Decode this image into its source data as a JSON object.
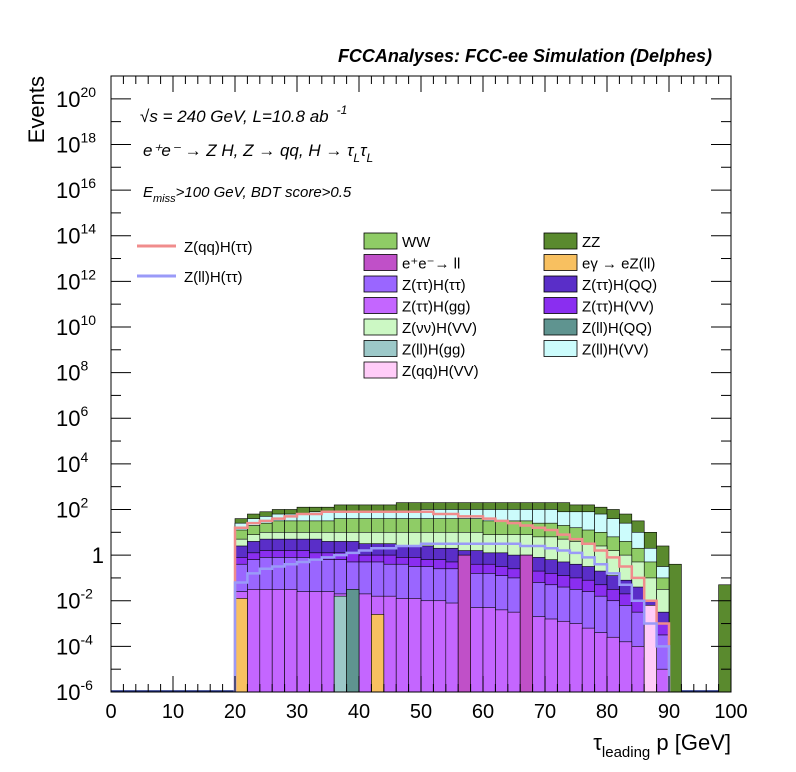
{
  "header": {
    "title": "FCCAnalyses: FCC-ee Simulation (Delphes)"
  },
  "annotations": {
    "line1_sqrt": "√s",
    "line1_rest": " = 240 GeV, L=10.8 ab",
    "line1_sup": "-1",
    "line2": "e⁺e⁻ → Z H, Z → qq, H → τ",
    "line2_sub1": "L",
    "line2_tau": "τ",
    "line2_sub2": "L",
    "line3_e": "E",
    "line3_sub": "miss",
    "line3_rest": ">100 GeV, BDT score>0.5"
  },
  "colors": {
    "WW": "#8fcc66",
    "ZZ": "#5a8a2e",
    "ee_ll": "#c050c8",
    "egamma_eZll": "#f8c060",
    "Ztautau_Htautau": "#9a66ff",
    "Ztautau_HQQ": "#5a2ec8",
    "Ztautau_Hgg": "#c466ff",
    "Ztautau_HVV": "#8a2ef0",
    "Znunu_HVV": "#ccf8c4",
    "Zll_HQQ": "#5f9490",
    "Zll_Hgg": "#9cc8c8",
    "Zll_HVV": "#ccfcfc",
    "Zqq_HVV": "#ffccf8",
    "sig_Zqq_Htautau": "#f08c8c",
    "sig_Zll_Htautau": "#9a9af8"
  },
  "chart_data": {
    "type": "stacked-histogram",
    "title": "FCCAnalyses: FCC-ee Simulation (Delphes)",
    "xlabel": "τ_leading p [GeV]",
    "ylabel": "Events",
    "xlim": [
      0,
      100
    ],
    "ylim": [
      1e-06,
      1e+21
    ],
    "log_y": true,
    "x_ticks": [
      "0",
      "10",
      "20",
      "30",
      "40",
      "50",
      "60",
      "70",
      "80",
      "90",
      "100"
    ],
    "y_ticks": [
      {
        "base": "10",
        "exp": "20"
      },
      {
        "base": "10",
        "exp": "18"
      },
      {
        "base": "10",
        "exp": "16"
      },
      {
        "base": "10",
        "exp": "14"
      },
      {
        "base": "10",
        "exp": "12"
      },
      {
        "base": "10",
        "exp": "10"
      },
      {
        "base": "10",
        "exp": "8"
      },
      {
        "base": "10",
        "exp": "6"
      },
      {
        "base": "10",
        "exp": "4"
      },
      {
        "base": "10",
        "exp": "2"
      },
      {
        "base": "1",
        "exp": ""
      },
      {
        "base": "10",
        "exp": "-2"
      },
      {
        "base": "10",
        "exp": "-4"
      },
      {
        "base": "10",
        "exp": "-6"
      }
    ],
    "legend_signal": [
      "Z(qq)H(ττ)",
      "Z(ll)H(ττ)"
    ],
    "legend_bkg": [
      [
        "WW",
        "ZZ"
      ],
      [
        "e⁺e⁻→ ll",
        "eγ → eZ(ll)"
      ],
      [
        "Z(ττ)H(ττ)",
        "Z(ττ)H(QQ)"
      ],
      [
        "Z(ττ)H(gg)",
        "Z(ττ)H(VV)"
      ],
      [
        "Z(νν)H(VV)",
        "Z(ll)H(QQ)"
      ],
      [
        "Z(ll)H(gg)",
        "Z(ll)H(VV)"
      ],
      [
        "Z(qq)H(VV)",
        ""
      ]
    ],
    "bin_width": 2,
    "stack_layers_log10_top": [
      {
        "name": "Z(ττ)H(gg)",
        "color_key": "Ztautau_Hgg",
        "edges": [
          20,
          90
        ],
        "tops": [
          -1.6,
          -1.5,
          -1.5,
          -1.5,
          -1.5,
          -1.6,
          -1.6,
          -1.6,
          -1.7,
          -1.7,
          -1.7,
          -1.8,
          -1.8,
          -1.9,
          -1.9,
          -2.0,
          -2.0,
          -2.1,
          -2.2,
          -2.3,
          -2.3,
          -2.4,
          -2.5,
          -2.6,
          -2.7,
          -2.8,
          -2.9,
          -3.0,
          -3.2,
          -3.4,
          -3.6,
          -3.8,
          -4.0,
          -4.5,
          -5.0
        ]
      },
      {
        "name": "Z(ττ)H(ττ)",
        "color_key": "Ztautau_Htautau",
        "edges": [
          20,
          90
        ],
        "tops": [
          -0.4,
          -0.2,
          -0.1,
          -0.1,
          -0.1,
          -0.1,
          -0.2,
          -0.2,
          -0.2,
          -0.3,
          -0.3,
          -0.3,
          -0.4,
          -0.4,
          -0.5,
          -0.5,
          -0.6,
          -0.6,
          -0.7,
          -0.8,
          -0.8,
          -0.9,
          -1.0,
          -1.1,
          -1.2,
          -1.3,
          -1.4,
          -1.5,
          -1.6,
          -1.8,
          -2.0,
          -2.2,
          -2.5,
          -3.0,
          -3.5
        ]
      },
      {
        "name": "Z(ττ)H(VV)",
        "color_key": "Ztautau_HVV",
        "edges": [
          20,
          90
        ],
        "tops": [
          -0.1,
          0.1,
          0.2,
          0.2,
          0.2,
          0.2,
          0.1,
          0.1,
          0.1,
          0.1,
          0.0,
          0.0,
          0.0,
          -0.1,
          -0.1,
          -0.2,
          -0.2,
          -0.3,
          -0.3,
          -0.4,
          -0.4,
          -0.5,
          -0.6,
          -0.6,
          -0.7,
          -0.8,
          -0.9,
          -1.0,
          -1.1,
          -1.3,
          -1.5,
          -1.7,
          -2.0,
          -2.5,
          -3.0
        ]
      },
      {
        "name": "Z(ττ)H(QQ)",
        "color_key": "Ztautau_HQQ",
        "edges": [
          20,
          90
        ],
        "tops": [
          0.4,
          0.6,
          0.7,
          0.7,
          0.7,
          0.7,
          0.7,
          0.6,
          0.6,
          0.6,
          0.5,
          0.5,
          0.5,
          0.4,
          0.4,
          0.4,
          0.3,
          0.3,
          0.2,
          0.2,
          0.1,
          0.1,
          0.0,
          0.0,
          -0.1,
          -0.2,
          -0.3,
          -0.4,
          -0.5,
          -0.7,
          -0.9,
          -1.1,
          -1.4,
          -2.0,
          -2.5
        ]
      },
      {
        "name": "Z(νν)H(VV)",
        "color_key": "Znunu_HVV",
        "edges": [
          20,
          90
        ],
        "tops": [
          0.7,
          0.9,
          1.0,
          1.0,
          1.0,
          1.0,
          1.0,
          1.0,
          1.0,
          1.0,
          1.0,
          1.0,
          1.0,
          1.0,
          1.0,
          1.0,
          1.0,
          1.0,
          1.0,
          1.0,
          0.9,
          0.9,
          0.9,
          0.9,
          0.8,
          0.8,
          0.7,
          0.6,
          0.5,
          0.4,
          0.2,
          0.0,
          -0.3,
          -1.0,
          -1.5
        ]
      },
      {
        "name": "WW",
        "color_key": "WW",
        "edges": [
          20,
          90
        ],
        "tops": [
          1.1,
          1.3,
          1.4,
          1.5,
          1.5,
          1.5,
          1.5,
          1.5,
          1.6,
          1.6,
          1.6,
          1.6,
          1.6,
          1.6,
          1.6,
          1.6,
          1.6,
          1.6,
          1.6,
          1.6,
          1.5,
          1.5,
          1.5,
          1.5,
          1.4,
          1.4,
          1.3,
          1.2,
          1.1,
          1.0,
          0.8,
          0.6,
          0.3,
          -0.3,
          -1.0
        ]
      },
      {
        "name": "Z(ll)H(VV)",
        "color_key": "Zll_HVV",
        "edges": [
          20,
          90
        ],
        "tops": [
          1.4,
          1.6,
          1.7,
          1.8,
          1.8,
          1.8,
          1.9,
          1.9,
          1.9,
          1.9,
          1.9,
          1.9,
          1.9,
          1.9,
          1.9,
          2.0,
          2.0,
          2.0,
          2.0,
          2.0,
          2.0,
          2.0,
          2.0,
          2.0,
          2.0,
          2.0,
          1.9,
          1.9,
          1.9,
          1.8,
          1.6,
          1.4,
          1.0,
          0.3,
          -0.5
        ]
      },
      {
        "name": "ZZ",
        "color_key": "ZZ",
        "edges": [
          20,
          92
        ],
        "tops": [
          1.6,
          1.8,
          1.9,
          2.0,
          2.0,
          2.1,
          2.1,
          2.1,
          2.2,
          2.2,
          2.2,
          2.2,
          2.2,
          2.3,
          2.3,
          2.3,
          2.3,
          2.3,
          2.3,
          2.3,
          2.3,
          2.3,
          2.3,
          2.3,
          2.3,
          2.3,
          2.3,
          2.2,
          2.2,
          2.1,
          2.0,
          1.8,
          1.5,
          1.0,
          0.4,
          -0.4
        ]
      }
    ],
    "spikes_log10": [
      {
        "name": "eγ → eZ(ll)",
        "color_key": "egamma_eZll",
        "x0": 20,
        "x1": 22,
        "top": -1.9
      },
      {
        "name": "eγ → eZ(ll)",
        "color_key": "egamma_eZll",
        "x0": 42,
        "x1": 44,
        "top": -2.6
      },
      {
        "name": "Z(ll)H(gg)",
        "color_key": "Zll_Hgg",
        "x0": 36,
        "x1": 38,
        "top": -1.8
      },
      {
        "name": "Z(ll)H(QQ)",
        "color_key": "Zll_HQQ",
        "x0": 38,
        "x1": 40,
        "top": -1.5
      },
      {
        "name": "e⁺e⁻→ ll",
        "color_key": "ee_ll",
        "x0": 56,
        "x1": 58,
        "top": 0.0
      },
      {
        "name": "e⁺e⁻→ ll",
        "color_key": "ee_ll",
        "x0": 66,
        "x1": 68,
        "top": 0.0
      },
      {
        "name": "Z(qq)H(VV)",
        "color_key": "Zqq_HVV",
        "x0": 86,
        "x1": 88,
        "top": -2.2
      },
      {
        "name": "ZZ",
        "color_key": "ZZ",
        "x0": 98,
        "x1": 100,
        "top": -1.3
      }
    ],
    "signal_Zqq_Htautau_log10": [
      1.2,
      1.4,
      1.5,
      1.6,
      1.7,
      1.8,
      1.8,
      1.9,
      1.9,
      1.9,
      1.9,
      1.9,
      1.9,
      1.9,
      1.9,
      1.9,
      1.8,
      1.8,
      1.7,
      1.7,
      1.6,
      1.5,
      1.4,
      1.3,
      1.2,
      1.1,
      0.9,
      0.7,
      0.5,
      0.2,
      -0.1,
      -0.5,
      -1.0,
      -2.0,
      -3.0
    ],
    "signal_Zll_Htautau_log10": [
      -1.2,
      -0.8,
      -0.6,
      -0.5,
      -0.4,
      -0.3,
      -0.2,
      -0.1,
      0.0,
      0.1,
      0.2,
      0.3,
      0.3,
      0.4,
      0.4,
      0.5,
      0.5,
      0.5,
      0.5,
      0.5,
      0.5,
      0.5,
      0.5,
      0.4,
      0.4,
      0.3,
      0.2,
      0.1,
      -0.1,
      -0.4,
      -0.8,
      -1.3,
      -2.0,
      -3.0,
      -4.0
    ]
  }
}
